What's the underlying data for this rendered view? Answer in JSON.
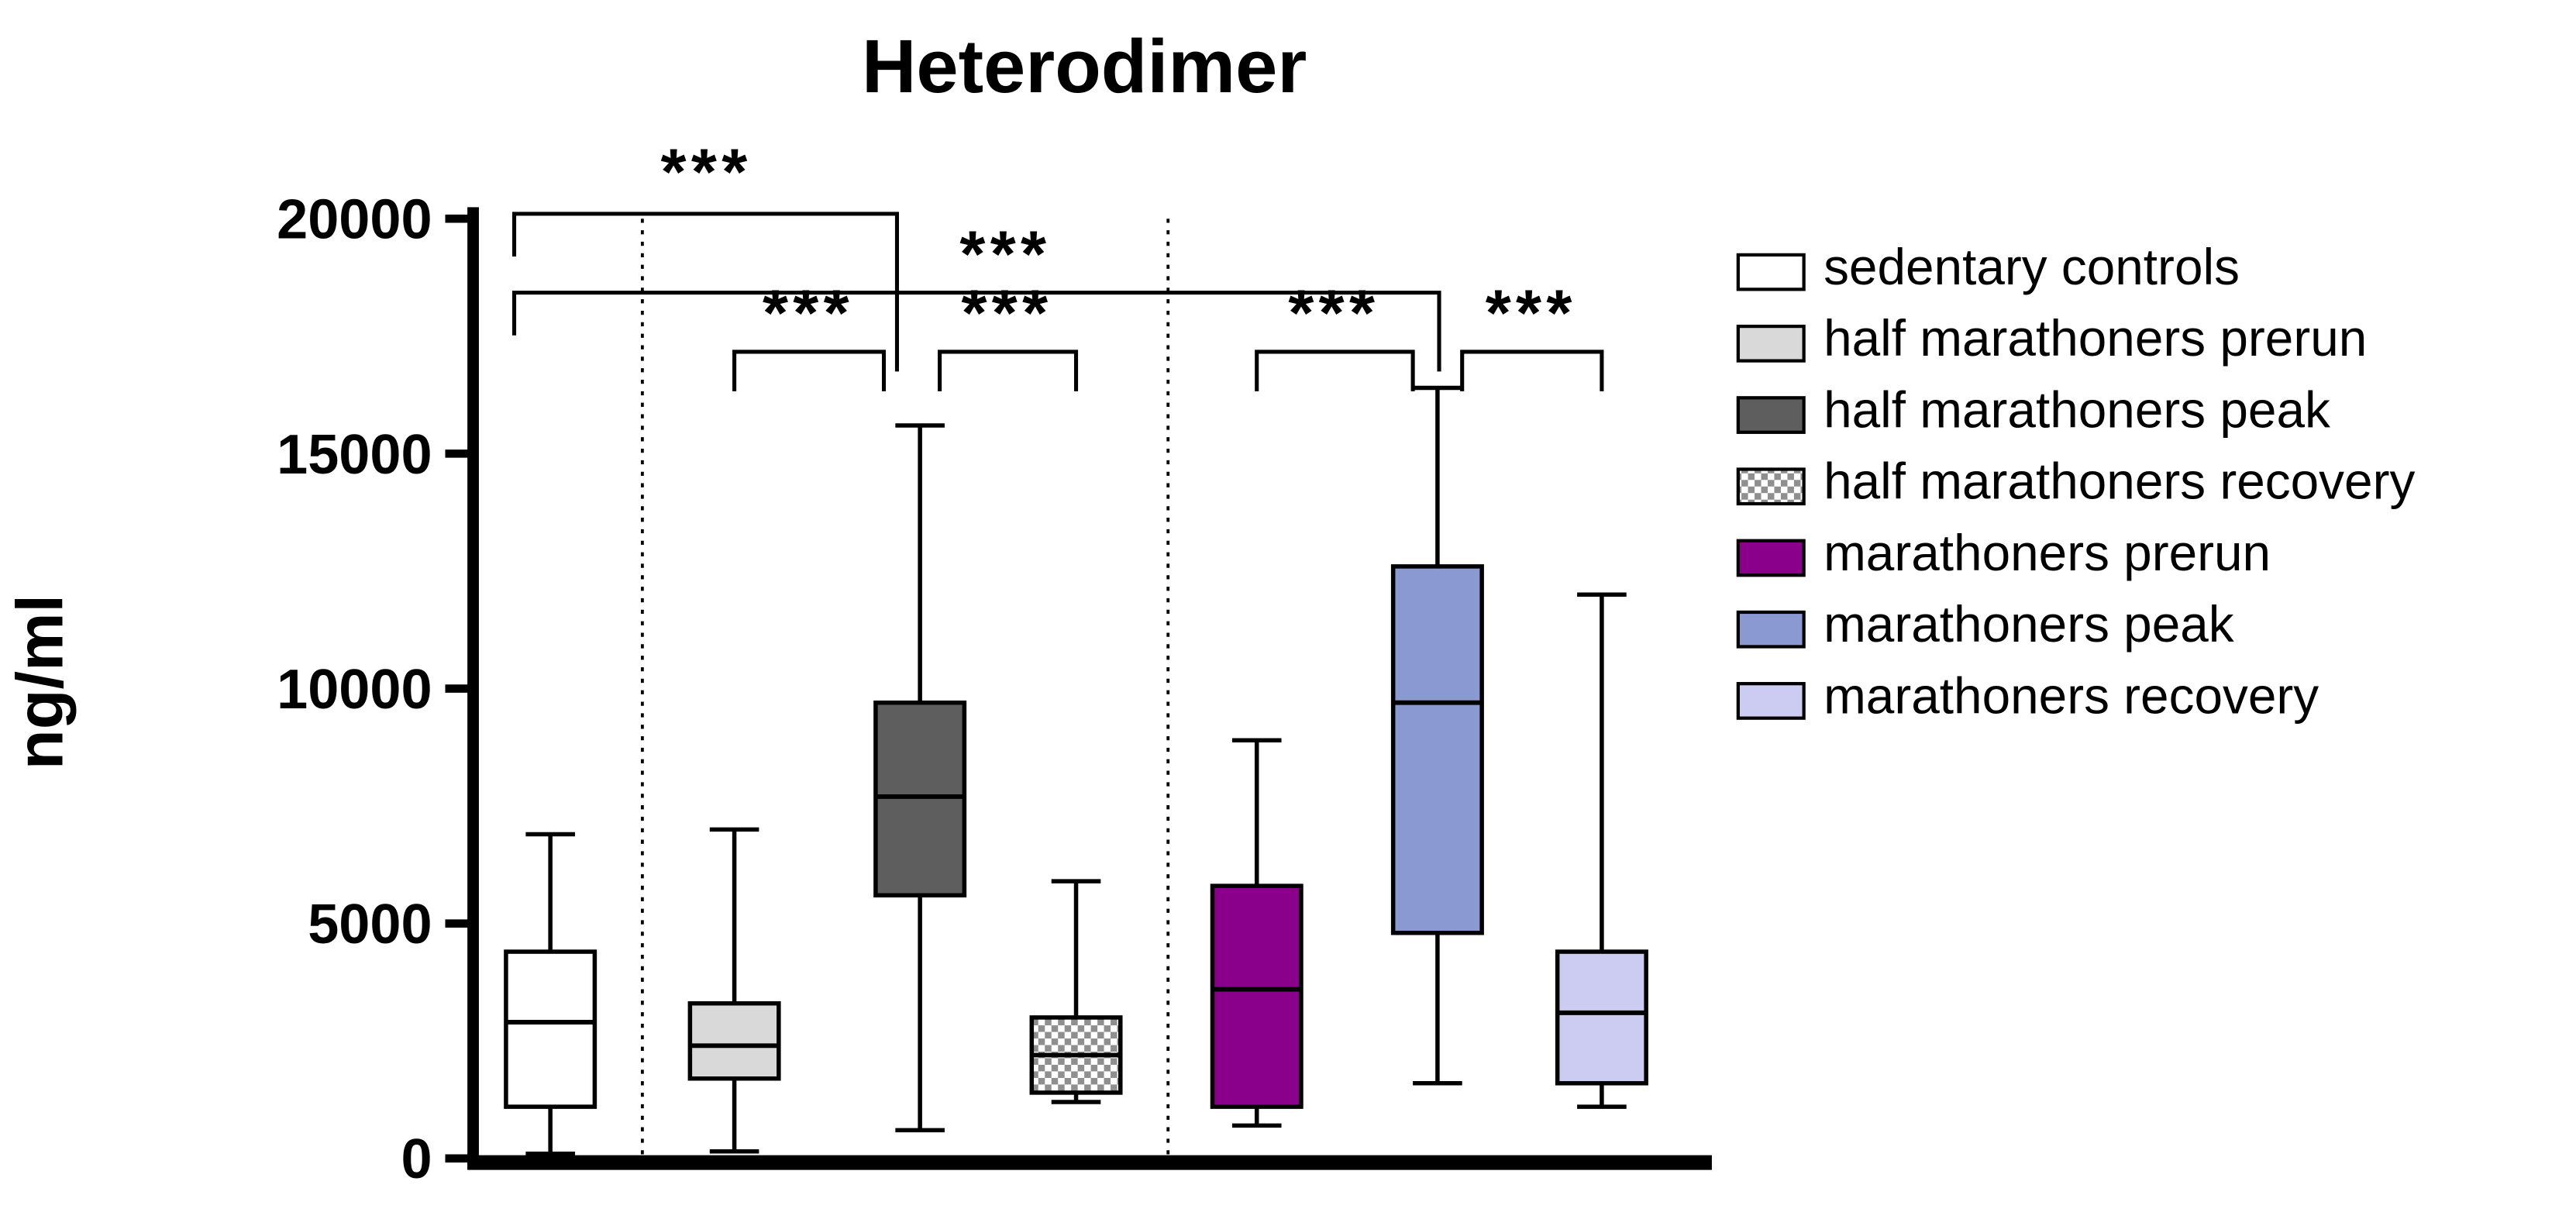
{
  "chart_data": {
    "type": "boxplot",
    "title": "Heterodimer",
    "ylabel": "ng/ml",
    "ylim": [
      0,
      20000
    ],
    "yticks": [
      0,
      5000,
      10000,
      15000,
      20000
    ],
    "grid": false,
    "legend_position": "right",
    "groups": [
      {
        "name": "sedentary controls",
        "fill": "#FFFFFF",
        "whisker_low": 100,
        "q1": 1100,
        "median": 2900,
        "q3": 4400,
        "whisker_high": 6900
      },
      {
        "name": "half marathoners prerun",
        "fill": "#D9D9D9",
        "whisker_low": 150,
        "q1": 1700,
        "median": 2400,
        "q3": 3300,
        "whisker_high": 7000
      },
      {
        "name": "half marathoners peak",
        "fill": "#5E5E5E",
        "whisker_low": 600,
        "q1": 5600,
        "median": 7700,
        "q3": 9700,
        "whisker_high": 15600
      },
      {
        "name": "half marathoners recovery",
        "fill": "checker",
        "whisker_low": 1200,
        "q1": 1400,
        "median": 2200,
        "q3": 3000,
        "whisker_high": 5900
      },
      {
        "name": "marathoners prerun",
        "fill": "#8B008B",
        "whisker_low": 700,
        "q1": 1100,
        "median": 3600,
        "q3": 5800,
        "whisker_high": 8900
      },
      {
        "name": "marathoners peak",
        "fill": "#8B99D2",
        "whisker_low": 1600,
        "q1": 4800,
        "median": 9700,
        "q3": 12600,
        "whisker_high": 16400
      },
      {
        "name": "marathoners recovery",
        "fill": "#CCCBF2",
        "whisker_low": 1100,
        "q1": 1600,
        "median": 3100,
        "q3": 4400,
        "whisker_high": 12000
      }
    ],
    "comparisons": [
      {
        "label": "***",
        "from": "sedentary controls",
        "to": "half marathoners peak"
      },
      {
        "label": "***",
        "from": "sedentary controls",
        "to": "marathoners peak"
      },
      {
        "label": "***",
        "from": "half marathoners prerun",
        "to": "half marathoners peak"
      },
      {
        "label": "***",
        "from": "half marathoners peak",
        "to": "half marathoners recovery"
      },
      {
        "label": "***",
        "from": "marathoners prerun",
        "to": "marathoners peak"
      },
      {
        "label": "***",
        "from": "marathoners peak",
        "to": "marathoners recovery"
      }
    ]
  }
}
